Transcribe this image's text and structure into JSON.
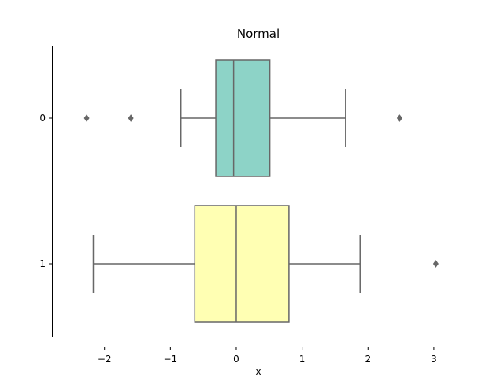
{
  "chart_data": {
    "type": "boxplot",
    "orientation": "horizontal",
    "title": "Normal",
    "xlabel": "x",
    "ylabel": "",
    "xlim": [
      -2.63,
      3.3
    ],
    "x_ticks": [
      -2,
      -1,
      0,
      1,
      2,
      3
    ],
    "x_tick_labels": [
      "−2",
      "−1",
      "0",
      "1",
      "2",
      "3"
    ],
    "categories": [
      "0",
      "1"
    ],
    "boxes": [
      {
        "category": "0",
        "color": "#8dd3c7",
        "whisker_low": -0.84,
        "q1": -0.31,
        "median": -0.04,
        "q3": 0.51,
        "whisker_high": 1.66,
        "outliers": [
          -2.27,
          -1.6,
          2.48
        ]
      },
      {
        "category": "1",
        "color": "#ffffb3",
        "whisker_low": -2.17,
        "q1": -0.63,
        "median": 0.0,
        "q3": 0.8,
        "whisker_high": 1.88,
        "outliers": [
          3.03
        ]
      }
    ],
    "line_color": "#676767",
    "grid": false
  }
}
